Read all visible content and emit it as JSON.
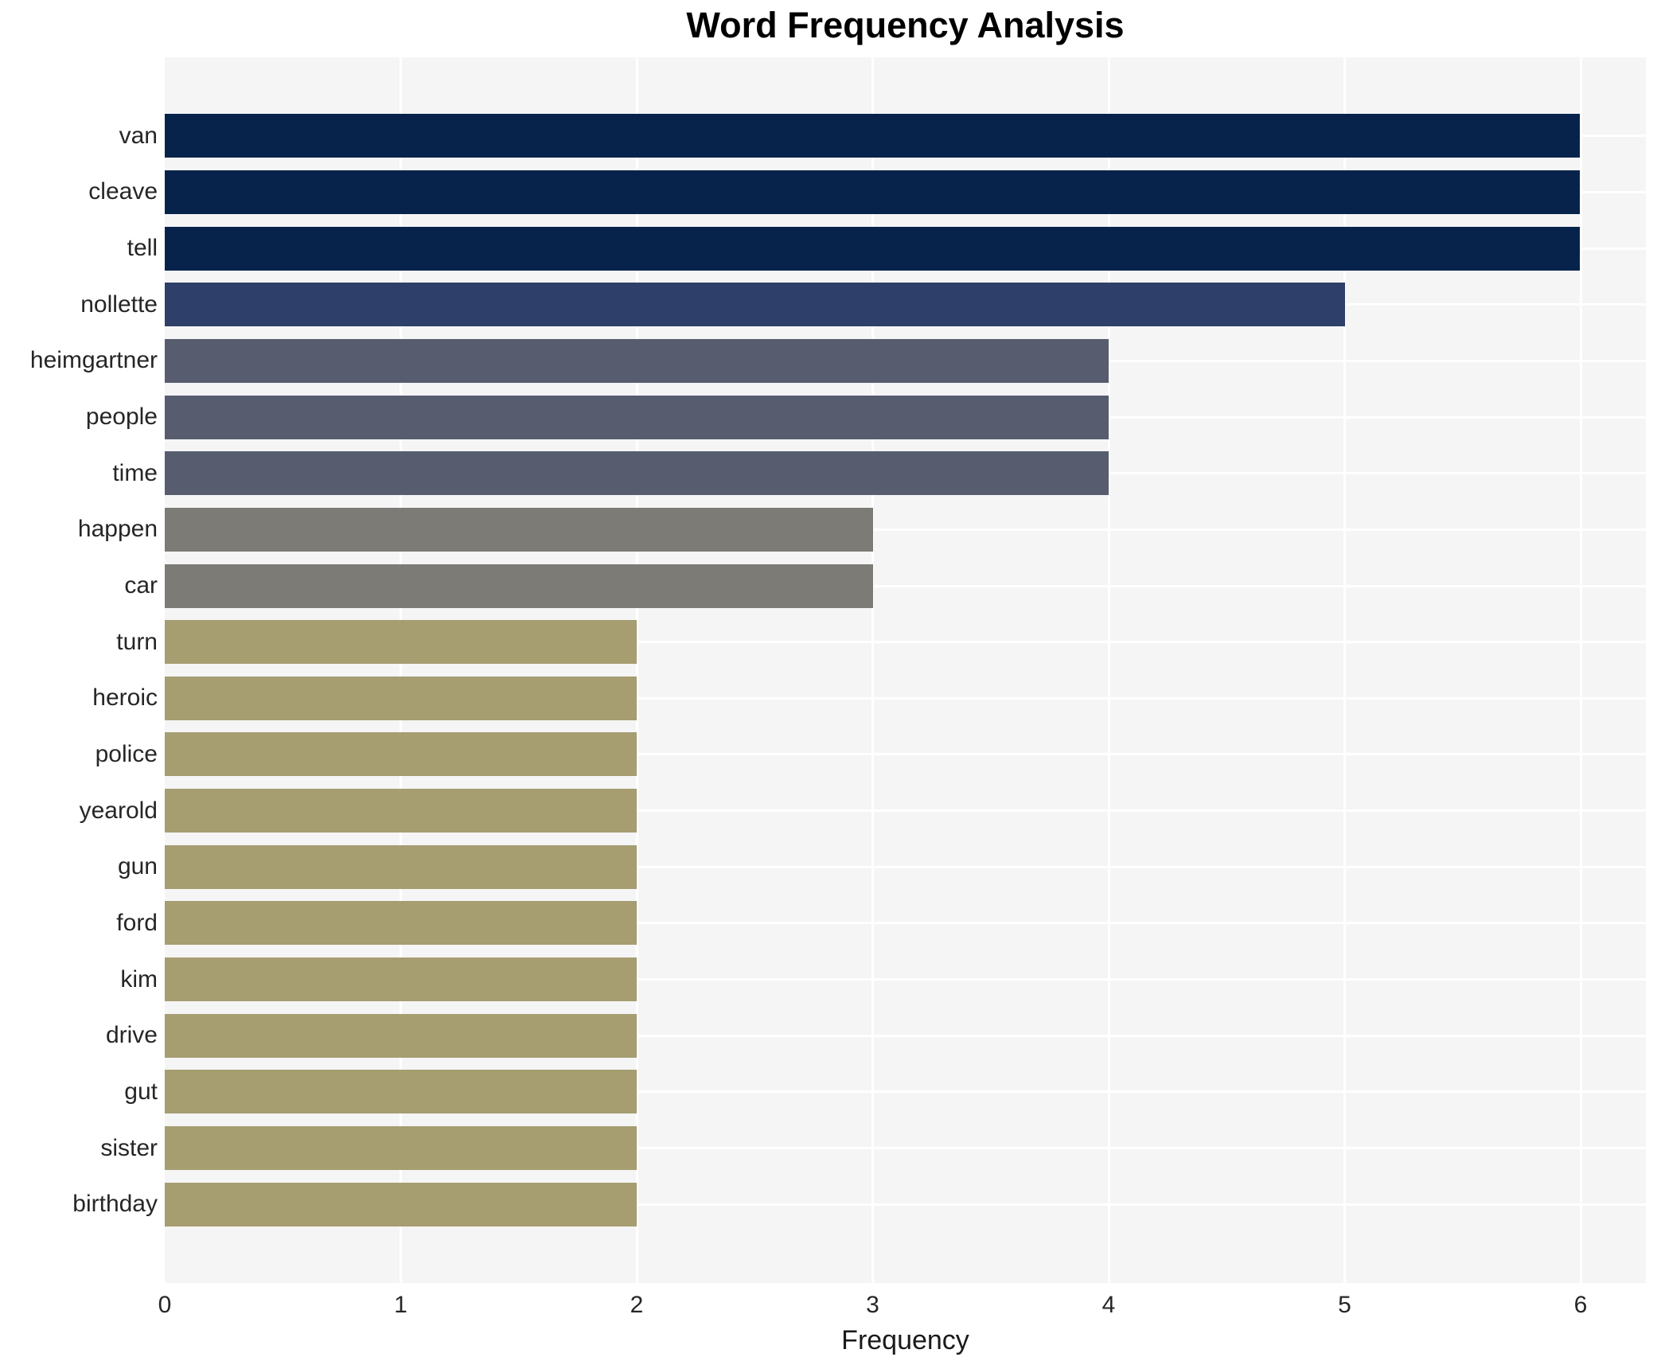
{
  "chart_data": {
    "type": "bar",
    "orientation": "horizontal",
    "title": "Word Frequency Analysis",
    "xlabel": "Frequency",
    "ylabel": "",
    "categories": [
      "van",
      "cleave",
      "tell",
      "nollette",
      "heimgartner",
      "people",
      "time",
      "happen",
      "car",
      "turn",
      "heroic",
      "police",
      "yearold",
      "gun",
      "ford",
      "kim",
      "drive",
      "gut",
      "sister",
      "birthday"
    ],
    "values": [
      6,
      6,
      6,
      5,
      4,
      4,
      4,
      3,
      3,
      2,
      2,
      2,
      2,
      2,
      2,
      2,
      2,
      2,
      2,
      2
    ],
    "xlim": [
      0,
      6.28
    ],
    "xticks": [
      0,
      1,
      2,
      3,
      4,
      5,
      6
    ],
    "grid": true,
    "legend": false,
    "bar_colors_by_value": {
      "6": "#07234b",
      "5": "#2e4069",
      "4": "#575d6f",
      "3": "#7c7b75",
      "2": "#a69d71"
    },
    "plot_bg_color": "#f5f5f6",
    "gridline_color": "#ffffff",
    "title_color": "#000000",
    "tick_label_color": "#262626"
  }
}
